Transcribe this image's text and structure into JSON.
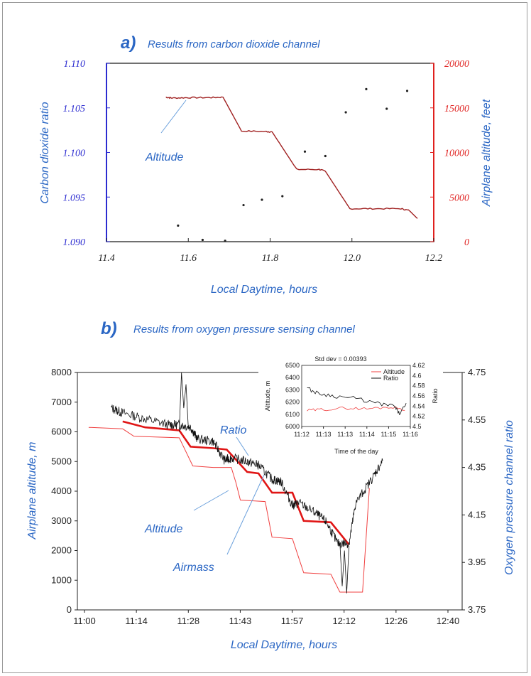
{
  "panel_a": {
    "letter": "a)",
    "title": "Results from carbon dioxide channel",
    "annotation": "Altitude"
  },
  "panel_b": {
    "letter": "b)",
    "title": "Results from oxygen pressure sensing channel",
    "annotations": {
      "ratio": "Ratio",
      "altitude": "Altitude",
      "airmass": "Airmass"
    }
  },
  "colors": {
    "axis_blue": "#2b2bd0",
    "axis_red": "#e0201e",
    "label_blue": "#2a66c4",
    "altitude_a": "#a02020",
    "thick_red": "#e01515",
    "thin_red": "#f04040",
    "ratio": "#111111"
  },
  "chart_data": [
    {
      "type": "scatter",
      "title": "Results from carbon dioxide channel",
      "xlabel": "Local Daytime, hours",
      "ylabel": "Carbon dioxide ratio",
      "y2label": "Airplane altitude, feet",
      "xlim": [
        11.4,
        12.2
      ],
      "ylim": [
        1.09,
        1.11
      ],
      "y2lim": [
        0,
        20000
      ],
      "xticks": [
        "11.4",
        "11.6",
        "11.8",
        "12.0",
        "12.2"
      ],
      "yticks": [
        "1.090",
        "1.095",
        "1.100",
        "1.105",
        "1.110"
      ],
      "y2ticks": [
        "0",
        "5000",
        "10000",
        "15000",
        "20000"
      ],
      "series": [
        {
          "axis": "left",
          "x": [
            11.575,
            11.635,
            11.69,
            11.735,
            11.78,
            11.83,
            11.885,
            11.935,
            11.985,
            12.035,
            12.085,
            12.135
          ],
          "y": [
            1.0918,
            1.0902,
            1.0901,
            1.0941,
            1.0947,
            1.0951,
            1.1001,
            1.0996,
            1.1045,
            1.1071,
            1.1049,
            1.1069
          ]
        },
        {
          "axis": "right",
          "x": [
            11.545,
            11.56,
            11.6,
            11.65,
            11.685,
            11.73,
            11.79,
            11.805,
            11.865,
            11.92,
            11.935,
            11.995,
            12.05,
            12.12,
            12.14,
            12.16
          ],
          "y": [
            16200,
            16100,
            16150,
            16150,
            16200,
            12400,
            12350,
            12300,
            8100,
            8100,
            7900,
            3700,
            3700,
            3700,
            3500,
            2600
          ]
        }
      ]
    },
    {
      "type": "line",
      "title": "Results from oxygen pressure sensing channel",
      "xlabel": "Local Daytime, hours",
      "ylabel": "Airplane altitude, m",
      "y2label": "Oxygen pressure channel ratio",
      "xlim": [
        11.0,
        12.7
      ],
      "ylim": [
        0,
        8000
      ],
      "y2lim": [
        3.75,
        4.75
      ],
      "xticks": [
        "11:00",
        "11:14",
        "11:28",
        "11:43",
        "11:57",
        "12:12",
        "12:26",
        "12:40"
      ],
      "yticks": [
        "0",
        "1000",
        "2000",
        "3000",
        "4000",
        "5000",
        "6000",
        "7000",
        "8000"
      ],
      "y2ticks": [
        "3.75",
        "3.95",
        "4.15",
        "4.35",
        "4.55",
        "4.75"
      ],
      "series": [
        {
          "name": "Ratio",
          "axis": "right",
          "x": [
            11.15,
            11.2,
            11.3,
            11.4,
            11.45,
            11.5,
            11.53,
            11.6,
            11.65,
            11.68,
            11.75,
            11.8,
            11.86,
            11.9,
            11.95,
            11.98,
            12.05,
            12.1,
            12.15,
            12.2,
            12.23,
            12.3,
            12.35
          ],
          "y": [
            4.6,
            4.58,
            4.555,
            4.53,
            4.53,
            4.52,
            4.47,
            4.46,
            4.38,
            4.39,
            4.375,
            4.36,
            4.3,
            4.29,
            4.19,
            4.2,
            4.16,
            4.12,
            4.03,
            4.03,
            4.2,
            4.3,
            4.38
          ]
        },
        {
          "name": "Altitude",
          "axis": "left",
          "x": [
            11.05,
            11.2,
            11.25,
            11.45,
            11.51,
            11.6,
            11.68,
            11.7,
            11.72,
            11.83,
            11.86,
            11.95,
            12.0,
            12.12,
            12.16,
            12.26,
            12.29
          ],
          "y": [
            6150,
            6100,
            5850,
            5800,
            4850,
            4800,
            4800,
            4300,
            3700,
            3650,
            2450,
            2400,
            1250,
            1200,
            600,
            600,
            4100
          ]
        },
        {
          "name": "Airmass",
          "axis": "left",
          "x": [
            11.2,
            11.3,
            11.45,
            11.5,
            11.6,
            11.66,
            11.75,
            11.8,
            11.86,
            11.95,
            12.0,
            12.12,
            12.2
          ],
          "y": [
            6350,
            6150,
            6050,
            5500,
            5450,
            5400,
            4650,
            4600,
            3950,
            3950,
            3000,
            2950,
            2200
          ]
        }
      ]
    },
    {
      "type": "line",
      "title": "Std dev = 0.00393",
      "xlabel": "Time of the day",
      "ylabel": "Altitude, m",
      "y2label": "Ratio",
      "ylim": [
        6000,
        6500
      ],
      "y2lim": [
        4.5,
        4.62
      ],
      "xticks": [
        "11:12",
        "11:13",
        "11:13",
        "11:14",
        "11:15",
        "11:16"
      ],
      "yticks": [
        "6000",
        "6100",
        "6200",
        "6300",
        "6400",
        "6500"
      ],
      "y2ticks": [
        "4.5",
        "4.52",
        "4.54",
        "4.56",
        "4.58",
        "4.6",
        "4.62"
      ],
      "legend": [
        "Altitude",
        "Ratio"
      ],
      "series": [
        {
          "name": "Altitude",
          "axis": "left",
          "x": [
            0.05,
            0.2,
            0.4,
            0.6,
            0.8,
            0.97
          ],
          "y": [
            6130,
            6140,
            6150,
            6145,
            6160,
            6140
          ]
        },
        {
          "name": "Ratio",
          "axis": "right",
          "x": [
            0.05,
            0.15,
            0.3,
            0.5,
            0.7,
            0.85,
            0.9,
            0.97
          ],
          "y": [
            4.575,
            4.565,
            4.56,
            4.555,
            4.545,
            4.54,
            4.525,
            4.545
          ]
        }
      ]
    }
  ]
}
